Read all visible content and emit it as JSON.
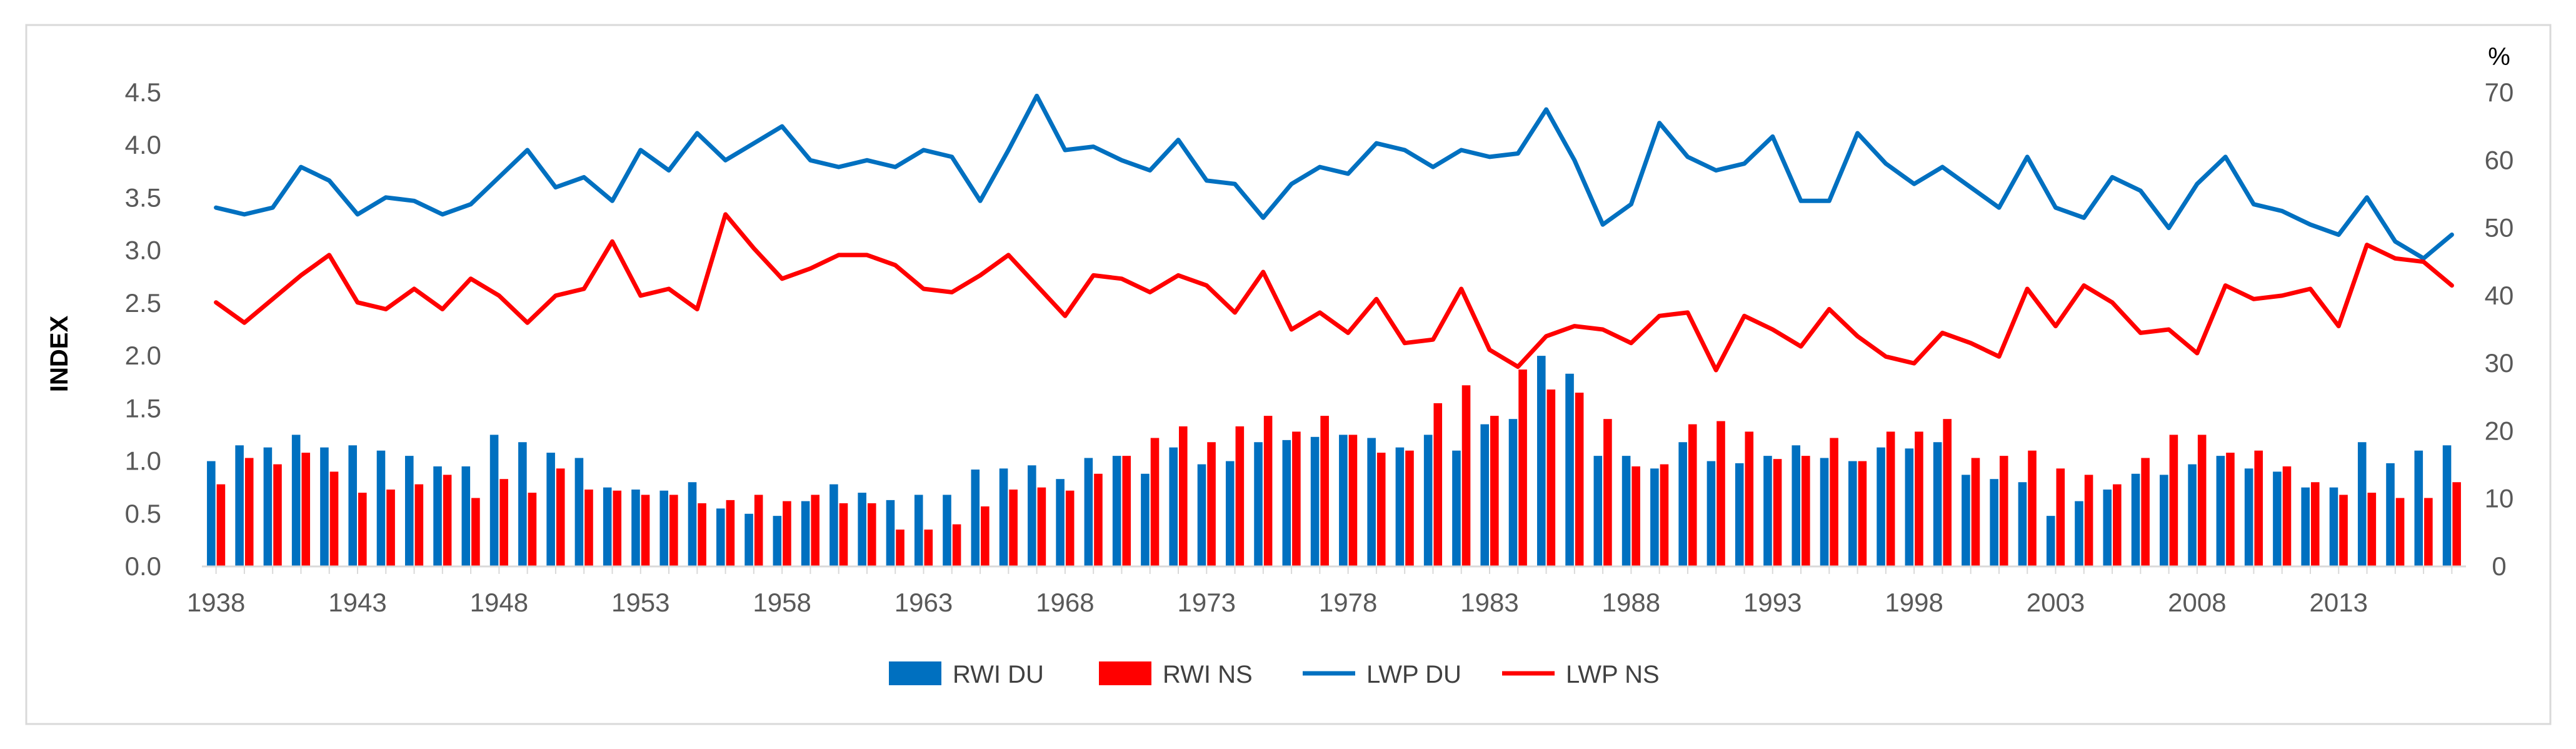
{
  "chart_data": {
    "type": "bar+line",
    "title": "",
    "xlabel": "",
    "ylabel": "INDEX",
    "y2label": "%",
    "ylim": [
      0,
      4.5
    ],
    "y2lim": [
      0,
      70
    ],
    "yticks": [
      "0.0",
      "0.5",
      "1.0",
      "1.5",
      "2.0",
      "2.5",
      "3.0",
      "3.5",
      "4.0",
      "4.5"
    ],
    "y2ticks": [
      "0",
      "10",
      "20",
      "30",
      "40",
      "50",
      "60",
      "70"
    ],
    "xticks": [
      "1938",
      "1943",
      "1948",
      "1953",
      "1958",
      "1963",
      "1968",
      "1973",
      "1978",
      "1983",
      "1988",
      "1993",
      "1998",
      "2003",
      "2008",
      "2013"
    ],
    "grid": false,
    "legend_position": "bottom",
    "colors": {
      "du": "#0070C0",
      "ns": "#FF0000"
    },
    "years": [
      1938,
      1939,
      1940,
      1941,
      1942,
      1943,
      1944,
      1945,
      1946,
      1947,
      1948,
      1949,
      1950,
      1951,
      1952,
      1953,
      1954,
      1955,
      1956,
      1957,
      1958,
      1959,
      1960,
      1961,
      1962,
      1963,
      1964,
      1965,
      1966,
      1967,
      1968,
      1969,
      1970,
      1971,
      1972,
      1973,
      1974,
      1975,
      1976,
      1977,
      1978,
      1979,
      1980,
      1981,
      1982,
      1983,
      1984,
      1985,
      1986,
      1987,
      1988,
      1989,
      1990,
      1991,
      1992,
      1993,
      1994,
      1995,
      1996,
      1997,
      1998,
      1999,
      2000,
      2001,
      2002,
      2003,
      2004,
      2005,
      2006,
      2007,
      2008,
      2009,
      2010,
      2011,
      2012,
      2013,
      2014,
      2015,
      2016,
      2017
    ],
    "series": [
      {
        "name": "RWI DU",
        "type": "bar",
        "axis": "left",
        "color": "#0070C0",
        "values": [
          1.0,
          1.15,
          1.13,
          1.25,
          1.13,
          1.15,
          1.1,
          1.05,
          0.95,
          0.95,
          1.25,
          1.18,
          1.08,
          1.03,
          0.75,
          0.73,
          0.72,
          0.8,
          0.55,
          0.5,
          0.48,
          0.62,
          0.78,
          0.7,
          0.63,
          0.68,
          0.68,
          0.92,
          0.93,
          0.96,
          0.83,
          1.03,
          1.05,
          0.88,
          1.13,
          0.97,
          1.0,
          1.18,
          1.2,
          1.23,
          1.25,
          1.22,
          1.13,
          1.25,
          1.1,
          1.35,
          1.4,
          2.0,
          1.83,
          1.05,
          1.05,
          0.93,
          1.18,
          1.0,
          0.98,
          1.05,
          1.15,
          1.03,
          1.0,
          1.13,
          1.12,
          1.18,
          0.87,
          0.83,
          0.8,
          0.48,
          0.62,
          0.73,
          0.88,
          0.87,
          0.97,
          1.05,
          0.93,
          0.9,
          0.75,
          0.75,
          1.18,
          0.98,
          1.1,
          1.15
        ]
      },
      {
        "name": "RWI NS",
        "type": "bar",
        "axis": "left",
        "color": "#FF0000",
        "values": [
          0.78,
          1.03,
          0.97,
          1.08,
          0.9,
          0.7,
          0.73,
          0.78,
          0.87,
          0.65,
          0.83,
          0.7,
          0.93,
          0.73,
          0.72,
          0.68,
          0.68,
          0.6,
          0.63,
          0.68,
          0.62,
          0.68,
          0.6,
          0.6,
          0.35,
          0.35,
          0.4,
          0.57,
          0.73,
          0.75,
          0.72,
          0.88,
          1.05,
          1.22,
          1.33,
          1.18,
          1.33,
          1.43,
          1.28,
          1.43,
          1.25,
          1.08,
          1.1,
          1.55,
          1.72,
          1.43,
          1.87,
          1.68,
          1.65,
          1.4,
          0.95,
          0.97,
          1.35,
          1.38,
          1.28,
          1.02,
          1.05,
          1.22,
          1.0,
          1.28,
          1.28,
          1.4,
          1.03,
          1.05,
          1.1,
          0.93,
          0.87,
          0.78,
          1.03,
          1.25,
          1.25,
          1.08,
          1.1,
          0.95,
          0.8,
          0.68,
          0.7,
          0.65,
          0.65,
          0.8
        ]
      },
      {
        "name": "LWP DU",
        "type": "line",
        "axis": "right",
        "color": "#0070C0",
        "values": [
          53,
          52,
          53,
          59,
          57,
          52,
          54.5,
          54,
          52,
          53.5,
          57.5,
          61.5,
          56,
          57.5,
          54,
          61.5,
          58.5,
          64,
          60,
          62.5,
          65,
          60,
          59,
          60,
          59,
          61.5,
          60.5,
          54,
          61.5,
          69.5,
          61.5,
          62,
          60,
          58.5,
          63,
          57,
          56.5,
          51.5,
          56.5,
          59,
          58,
          62.5,
          61.5,
          59,
          61.5,
          60.5,
          61,
          67.5,
          60,
          50.5,
          53.5,
          65.5,
          60.5,
          58.5,
          59.5,
          63.5,
          54,
          54,
          64,
          59.5,
          56.5,
          59,
          56,
          53,
          60.5,
          53,
          51.5,
          57.5,
          55.5,
          50,
          56.5,
          60.5,
          53.5,
          52.5,
          50.5,
          49,
          54.5,
          48,
          45.5,
          49
        ]
      },
      {
        "name": "LWP NS",
        "type": "line",
        "axis": "right",
        "color": "#FF0000",
        "values": [
          39,
          36,
          39.5,
          43,
          46,
          39,
          38,
          41,
          38,
          42.5,
          40,
          36,
          40,
          41,
          48,
          40,
          41,
          38,
          52,
          47,
          42.5,
          44,
          46,
          46,
          44.5,
          41,
          40.5,
          43,
          46,
          41.5,
          37,
          43,
          42.5,
          40.5,
          43,
          41.5,
          37.5,
          43.5,
          35,
          37.5,
          34.5,
          39.5,
          33,
          33.5,
          41,
          32,
          29.5,
          34,
          35.5,
          35,
          33,
          37,
          37.5,
          29,
          37,
          35,
          32.5,
          38,
          34,
          31,
          30,
          34.5,
          33,
          31,
          41,
          35.5,
          41.5,
          39,
          34.5,
          35,
          31.5,
          41.5,
          39.5,
          40,
          41,
          35.5,
          47.5,
          45.5,
          45,
          41.5
        ]
      }
    ]
  }
}
